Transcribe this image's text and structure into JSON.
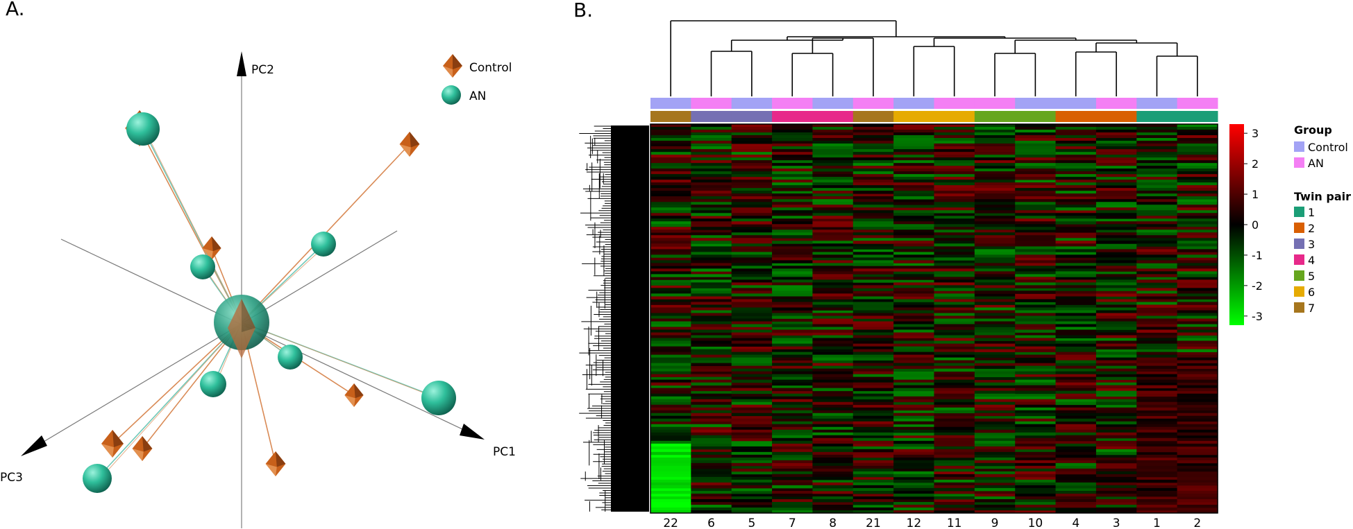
{
  "panel_a": {
    "label": "A.",
    "axes": [
      "PC1",
      "PC2",
      "PC3"
    ],
    "legend": [
      {
        "name": "Control",
        "color": "#C8601A",
        "shape": "diamond-icon"
      },
      {
        "name": "AN",
        "color": "#2FBF9B",
        "shape": "sphere-icon"
      }
    ]
  },
  "panel_b": {
    "label": "B.",
    "column_labels": [
      "22",
      "6",
      "5",
      "7",
      "8",
      "21",
      "12",
      "11",
      "9",
      "10",
      "4",
      "3",
      "1",
      "2"
    ],
    "group_row": [
      "Control",
      "AN",
      "Control",
      "AN",
      "Control",
      "AN",
      "Control",
      "AN",
      "AN",
      "Control",
      "Control",
      "AN",
      "Control",
      "AN"
    ],
    "twin_row": [
      7,
      3,
      3,
      4,
      4,
      7,
      6,
      6,
      5,
      5,
      2,
      2,
      1,
      1
    ],
    "colorbar": {
      "ticks": [
        "3",
        "2",
        "1",
        "0",
        "-1",
        "-2",
        "-3"
      ],
      "min": -3.3,
      "max": 3.3,
      "low_color": "#00FF00",
      "mid_color": "#000000",
      "high_color": "#FF0000"
    },
    "legend_group": {
      "title": "Group",
      "items": [
        {
          "name": "Control",
          "color": "#A3A3F5"
        },
        {
          "name": "AN",
          "color": "#F47FF4"
        }
      ]
    },
    "legend_twin": {
      "title": "Twin pair",
      "items": [
        {
          "name": "1",
          "color": "#1B9E77"
        },
        {
          "name": "2",
          "color": "#D95F02"
        },
        {
          "name": "3",
          "color": "#7570B3"
        },
        {
          "name": "4",
          "color": "#E7298A"
        },
        {
          "name": "5",
          "color": "#66A61E"
        },
        {
          "name": "6",
          "color": "#E6AB02"
        },
        {
          "name": "7",
          "color": "#A6761D"
        }
      ]
    }
  },
  "chart_data": [
    {
      "type": "scatter",
      "title": "",
      "xlabel": "PC1",
      "ylabel": "PC2",
      "zlabel": "PC3",
      "series": [
        {
          "name": "Control"
        },
        {
          "name": "AN"
        }
      ]
    },
    {
      "type": "heatmap",
      "x": [
        "22",
        "6",
        "5",
        "7",
        "8",
        "21",
        "12",
        "11",
        "9",
        "10",
        "4",
        "3",
        "1",
        "2"
      ],
      "value_range": [
        -3,
        3
      ],
      "annotations": [
        "Group",
        "Twin pair"
      ]
    }
  ]
}
